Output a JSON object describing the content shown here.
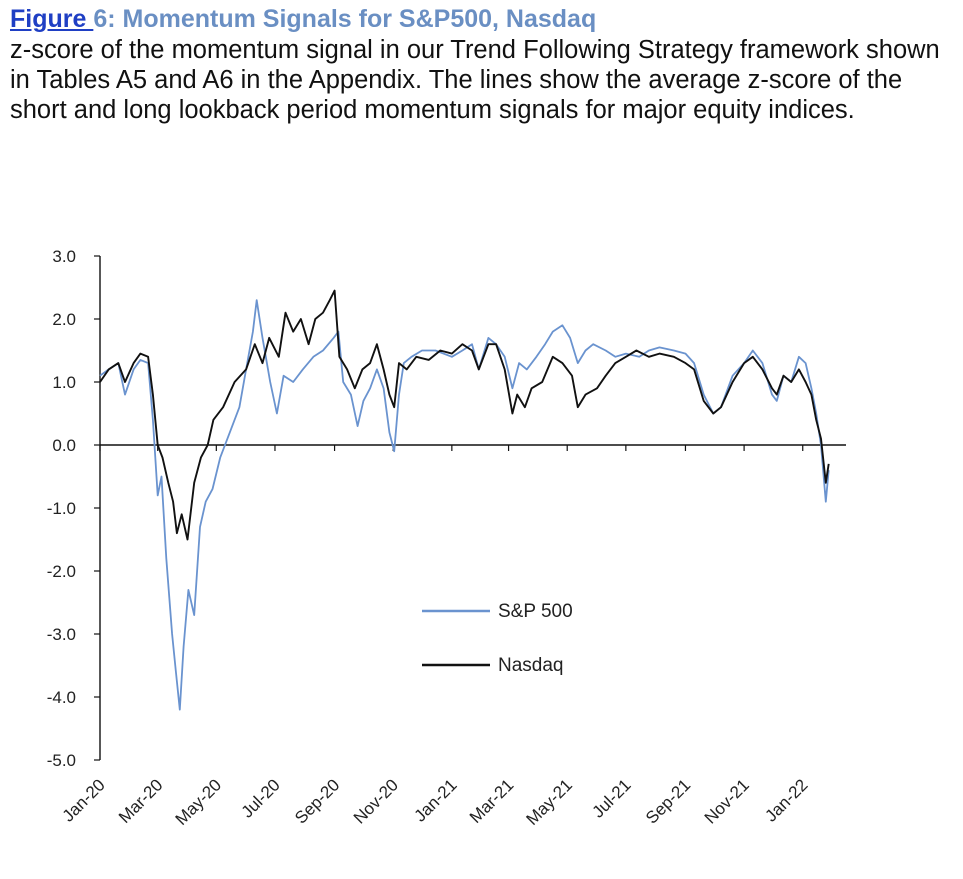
{
  "figure": {
    "link_text": "Figure ",
    "title_rest": "6: Momentum Signals for S&P500, Nasdaq",
    "caption": "z-score of the momentum signal in our Trend Following Strategy framework shown in Tables A5 and A6 in the Appendix. The lines show the average z-score of the short and long lookback period momentum signals for major equity indices."
  },
  "colors": {
    "sp500": "#6a93cf",
    "nasdaq": "#111111",
    "title": "#6a8fc3",
    "link": "#1f3fc4"
  },
  "chart_data": {
    "type": "line",
    "title": "",
    "xlabel": "",
    "ylabel": "",
    "ylim": [
      -5.0,
      3.0
    ],
    "y_ticks": [
      "3.0",
      "2.0",
      "1.0",
      "0.0",
      "-1.0",
      "-2.0",
      "-3.0",
      "-4.0",
      "-5.0"
    ],
    "x_ticks": [
      "Jan-20",
      "Mar-20",
      "May-20",
      "Jul-20",
      "Sep-20",
      "Nov-20",
      "Jan-21",
      "Mar-21",
      "May-21",
      "Jul-21",
      "Sep-21",
      "Nov-21",
      "Jan-22"
    ],
    "xlim": [
      "2020-01-01",
      "2022-02-15"
    ],
    "grid": false,
    "legend_position": "lower-center",
    "series": [
      {
        "name": "S&P 500",
        "color": "#6a93cf",
        "points": [
          [
            "2020-01-01",
            1.1
          ],
          [
            "2020-01-10",
            1.2
          ],
          [
            "2020-01-20",
            1.3
          ],
          [
            "2020-01-27",
            0.8
          ],
          [
            "2020-02-05",
            1.2
          ],
          [
            "2020-02-12",
            1.35
          ],
          [
            "2020-02-20",
            1.3
          ],
          [
            "2020-02-25",
            0.4
          ],
          [
            "2020-03-01",
            -0.8
          ],
          [
            "2020-03-05",
            -0.5
          ],
          [
            "2020-03-10",
            -1.8
          ],
          [
            "2020-03-16",
            -3.0
          ],
          [
            "2020-03-20",
            -3.6
          ],
          [
            "2020-03-24",
            -4.2
          ],
          [
            "2020-03-28",
            -3.2
          ],
          [
            "2020-04-02",
            -2.3
          ],
          [
            "2020-04-08",
            -2.7
          ],
          [
            "2020-04-14",
            -1.3
          ],
          [
            "2020-04-20",
            -0.9
          ],
          [
            "2020-04-27",
            -0.7
          ],
          [
            "2020-05-05",
            -0.2
          ],
          [
            "2020-05-15",
            0.2
          ],
          [
            "2020-05-25",
            0.6
          ],
          [
            "2020-06-01",
            1.2
          ],
          [
            "2020-06-08",
            1.8
          ],
          [
            "2020-06-12",
            2.3
          ],
          [
            "2020-06-18",
            1.7
          ],
          [
            "2020-06-26",
            1.0
          ],
          [
            "2020-07-03",
            0.5
          ],
          [
            "2020-07-10",
            1.1
          ],
          [
            "2020-07-20",
            1.0
          ],
          [
            "2020-07-30",
            1.2
          ],
          [
            "2020-08-10",
            1.4
          ],
          [
            "2020-08-20",
            1.5
          ],
          [
            "2020-08-31",
            1.7
          ],
          [
            "2020-09-05",
            1.8
          ],
          [
            "2020-09-10",
            1.0
          ],
          [
            "2020-09-18",
            0.8
          ],
          [
            "2020-09-25",
            0.3
          ],
          [
            "2020-10-01",
            0.7
          ],
          [
            "2020-10-08",
            0.9
          ],
          [
            "2020-10-15",
            1.2
          ],
          [
            "2020-10-22",
            0.9
          ],
          [
            "2020-10-28",
            0.2
          ],
          [
            "2020-11-02",
            -0.1
          ],
          [
            "2020-11-07",
            0.8
          ],
          [
            "2020-11-12",
            1.3
          ],
          [
            "2020-11-20",
            1.4
          ],
          [
            "2020-12-01",
            1.5
          ],
          [
            "2020-12-15",
            1.5
          ],
          [
            "2021-01-01",
            1.4
          ],
          [
            "2021-01-12",
            1.5
          ],
          [
            "2021-01-22",
            1.6
          ],
          [
            "2021-01-29",
            1.2
          ],
          [
            "2021-02-08",
            1.7
          ],
          [
            "2021-02-16",
            1.6
          ],
          [
            "2021-02-25",
            1.4
          ],
          [
            "2021-03-05",
            0.9
          ],
          [
            "2021-03-12",
            1.3
          ],
          [
            "2021-03-20",
            1.2
          ],
          [
            "2021-03-30",
            1.4
          ],
          [
            "2021-04-08",
            1.6
          ],
          [
            "2021-04-16",
            1.8
          ],
          [
            "2021-04-26",
            1.9
          ],
          [
            "2021-05-04",
            1.7
          ],
          [
            "2021-05-12",
            1.3
          ],
          [
            "2021-05-20",
            1.5
          ],
          [
            "2021-05-28",
            1.6
          ],
          [
            "2021-06-10",
            1.5
          ],
          [
            "2021-06-20",
            1.4
          ],
          [
            "2021-07-01",
            1.45
          ],
          [
            "2021-07-15",
            1.4
          ],
          [
            "2021-07-25",
            1.5
          ],
          [
            "2021-08-05",
            1.55
          ],
          [
            "2021-08-20",
            1.5
          ],
          [
            "2021-09-01",
            1.45
          ],
          [
            "2021-09-10",
            1.3
          ],
          [
            "2021-09-20",
            0.8
          ],
          [
            "2021-09-30",
            0.5
          ],
          [
            "2021-10-08",
            0.6
          ],
          [
            "2021-10-20",
            1.1
          ],
          [
            "2021-11-01",
            1.3
          ],
          [
            "2021-11-10",
            1.5
          ],
          [
            "2021-11-20",
            1.3
          ],
          [
            "2021-11-30",
            0.8
          ],
          [
            "2021-12-05",
            0.7
          ],
          [
            "2021-12-12",
            1.1
          ],
          [
            "2021-12-20",
            1.0
          ],
          [
            "2021-12-28",
            1.4
          ],
          [
            "2022-01-04",
            1.3
          ],
          [
            "2022-01-10",
            0.9
          ],
          [
            "2022-01-15",
            0.5
          ],
          [
            "2022-01-20",
            0.0
          ],
          [
            "2022-01-25",
            -0.9
          ],
          [
            "2022-01-28",
            -0.4
          ]
        ]
      },
      {
        "name": "Nasdaq",
        "color": "#111111",
        "points": [
          [
            "2020-01-01",
            1.0
          ],
          [
            "2020-01-10",
            1.2
          ],
          [
            "2020-01-20",
            1.3
          ],
          [
            "2020-01-27",
            1.0
          ],
          [
            "2020-02-05",
            1.3
          ],
          [
            "2020-02-12",
            1.45
          ],
          [
            "2020-02-20",
            1.4
          ],
          [
            "2020-02-25",
            0.8
          ],
          [
            "2020-03-01",
            0.0
          ],
          [
            "2020-03-06",
            -0.2
          ],
          [
            "2020-03-12",
            -0.6
          ],
          [
            "2020-03-17",
            -0.9
          ],
          [
            "2020-03-21",
            -1.4
          ],
          [
            "2020-03-26",
            -1.1
          ],
          [
            "2020-04-01",
            -1.5
          ],
          [
            "2020-04-08",
            -0.6
          ],
          [
            "2020-04-15",
            -0.2
          ],
          [
            "2020-04-22",
            0.0
          ],
          [
            "2020-04-28",
            0.4
          ],
          [
            "2020-05-08",
            0.6
          ],
          [
            "2020-05-20",
            1.0
          ],
          [
            "2020-06-01",
            1.2
          ],
          [
            "2020-06-10",
            1.6
          ],
          [
            "2020-06-18",
            1.3
          ],
          [
            "2020-06-25",
            1.7
          ],
          [
            "2020-07-05",
            1.4
          ],
          [
            "2020-07-12",
            2.1
          ],
          [
            "2020-07-20",
            1.8
          ],
          [
            "2020-07-28",
            2.0
          ],
          [
            "2020-08-05",
            1.6
          ],
          [
            "2020-08-12",
            2.0
          ],
          [
            "2020-08-20",
            2.1
          ],
          [
            "2020-08-27",
            2.3
          ],
          [
            "2020-09-01",
            2.45
          ],
          [
            "2020-09-06",
            1.4
          ],
          [
            "2020-09-14",
            1.2
          ],
          [
            "2020-09-22",
            0.9
          ],
          [
            "2020-09-30",
            1.2
          ],
          [
            "2020-10-08",
            1.3
          ],
          [
            "2020-10-15",
            1.6
          ],
          [
            "2020-10-22",
            1.2
          ],
          [
            "2020-10-28",
            0.8
          ],
          [
            "2020-11-02",
            0.6
          ],
          [
            "2020-11-07",
            1.3
          ],
          [
            "2020-11-15",
            1.2
          ],
          [
            "2020-11-25",
            1.4
          ],
          [
            "2020-12-08",
            1.35
          ],
          [
            "2020-12-20",
            1.5
          ],
          [
            "2021-01-01",
            1.45
          ],
          [
            "2021-01-12",
            1.6
          ],
          [
            "2021-01-22",
            1.5
          ],
          [
            "2021-01-29",
            1.2
          ],
          [
            "2021-02-08",
            1.6
          ],
          [
            "2021-02-16",
            1.6
          ],
          [
            "2021-02-25",
            1.2
          ],
          [
            "2021-03-05",
            0.5
          ],
          [
            "2021-03-10",
            0.8
          ],
          [
            "2021-03-18",
            0.6
          ],
          [
            "2021-03-25",
            0.9
          ],
          [
            "2021-04-05",
            1.0
          ],
          [
            "2021-04-16",
            1.4
          ],
          [
            "2021-04-26",
            1.3
          ],
          [
            "2021-05-06",
            1.1
          ],
          [
            "2021-05-12",
            0.6
          ],
          [
            "2021-05-20",
            0.8
          ],
          [
            "2021-06-01",
            0.9
          ],
          [
            "2021-06-10",
            1.1
          ],
          [
            "2021-06-20",
            1.3
          ],
          [
            "2021-07-01",
            1.4
          ],
          [
            "2021-07-12",
            1.5
          ],
          [
            "2021-07-25",
            1.4
          ],
          [
            "2021-08-05",
            1.45
          ],
          [
            "2021-08-20",
            1.4
          ],
          [
            "2021-09-01",
            1.3
          ],
          [
            "2021-09-10",
            1.2
          ],
          [
            "2021-09-20",
            0.7
          ],
          [
            "2021-09-30",
            0.5
          ],
          [
            "2021-10-08",
            0.6
          ],
          [
            "2021-10-20",
            1.0
          ],
          [
            "2021-11-01",
            1.3
          ],
          [
            "2021-11-10",
            1.4
          ],
          [
            "2021-11-20",
            1.2
          ],
          [
            "2021-11-30",
            0.9
          ],
          [
            "2021-12-05",
            0.8
          ],
          [
            "2021-12-12",
            1.1
          ],
          [
            "2021-12-20",
            1.0
          ],
          [
            "2021-12-28",
            1.2
          ],
          [
            "2022-01-04",
            1.0
          ],
          [
            "2022-01-10",
            0.8
          ],
          [
            "2022-01-15",
            0.4
          ],
          [
            "2022-01-20",
            0.1
          ],
          [
            "2022-01-25",
            -0.6
          ],
          [
            "2022-01-28",
            -0.3
          ]
        ]
      }
    ]
  }
}
